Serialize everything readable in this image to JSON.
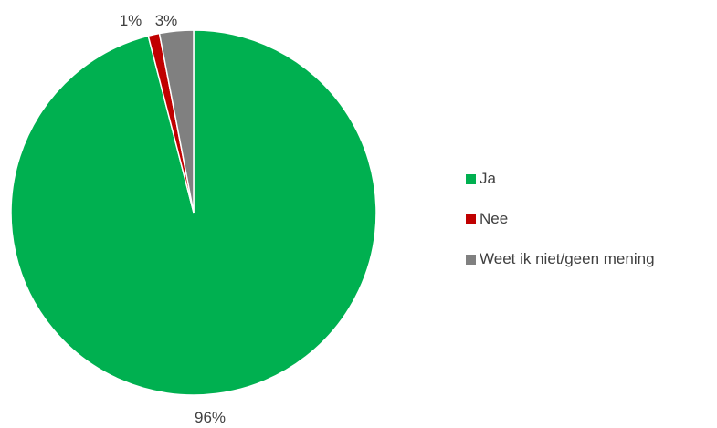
{
  "chart_data": {
    "type": "pie",
    "title": "",
    "categories": [
      "Ja",
      "Nee",
      "Weet ik niet/geen mening"
    ],
    "values": [
      96,
      1,
      3
    ],
    "data_labels": [
      "96%",
      "1%",
      "3%"
    ],
    "colors": [
      "#00b050",
      "#c00000",
      "#808080"
    ],
    "start_angle": "12 o'clock",
    "direction": "clockwise",
    "legend_position": "right"
  },
  "legend": {
    "items": [
      {
        "label": "Ja",
        "color": "#00b050"
      },
      {
        "label": "Nee",
        "color": "#c00000"
      },
      {
        "label": "Weet ik niet/geen mening",
        "color": "#808080"
      }
    ]
  }
}
